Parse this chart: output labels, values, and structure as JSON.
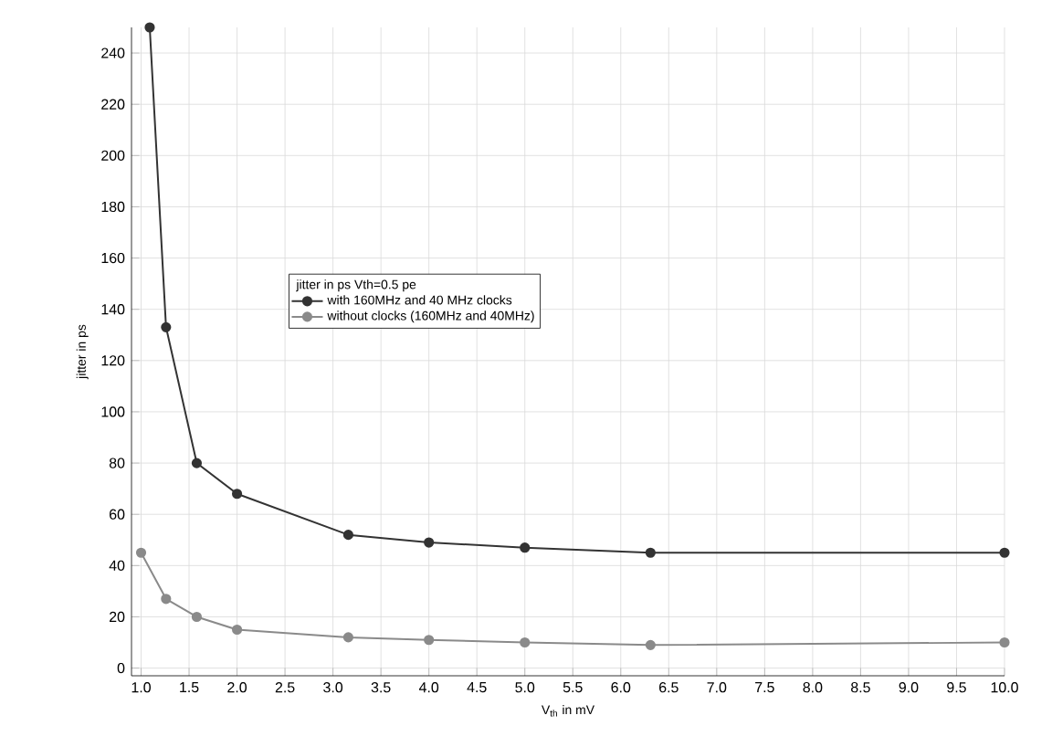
{
  "chart_data": {
    "type": "line",
    "xlabel": "V$_{th}$ in mV",
    "ylabel": "jitter in ps",
    "legend_title": "jitter in ps Vth=0.5 pe",
    "series": [
      {
        "name": "with 160MHz and 40 MHz clocks",
        "color": "#333333",
        "x": [
          1.09,
          1.26,
          1.58,
          2.0,
          3.16,
          4.0,
          5.0,
          6.31,
          10.0
        ],
        "values": [
          250,
          133,
          80,
          68,
          52,
          49,
          47,
          45,
          45
        ]
      },
      {
        "name": "without clocks (160MHz and 40MHz)",
        "color": "#8a8a8a",
        "x": [
          1.0,
          1.26,
          1.58,
          2.0,
          3.16,
          4.0,
          5.0,
          6.31,
          10.0
        ],
        "values": [
          45,
          27,
          20,
          15,
          12,
          11,
          10,
          9,
          10
        ]
      }
    ],
    "xlim": [
      0.9,
      10.0
    ],
    "ylim": [
      -3,
      250
    ],
    "xticks": [
      {
        "value": 1,
        "label": "1.0"
      },
      1.5,
      {
        "value": 2,
        "label": "2.0"
      },
      2.5,
      {
        "value": 3,
        "label": "3.0"
      },
      3.5,
      {
        "value": 4,
        "label": "4.0"
      },
      4.5,
      {
        "value": 5,
        "label": "5.0"
      },
      5.5,
      {
        "value": 6,
        "label": "6.0"
      },
      6.5,
      {
        "value": 7,
        "label": "7.0"
      },
      7.5,
      {
        "value": 8,
        "label": "8.0"
      },
      8.5,
      {
        "value": 9,
        "label": "9.0"
      },
      9.5,
      {
        "value": 10,
        "label": "10.0"
      }
    ],
    "yticks": [
      0,
      20,
      40,
      60,
      80,
      100,
      120,
      140,
      160,
      180,
      200,
      220,
      240
    ],
    "grid": true,
    "legend": "center",
    "marker": "circle",
    "line_style": "solid"
  }
}
